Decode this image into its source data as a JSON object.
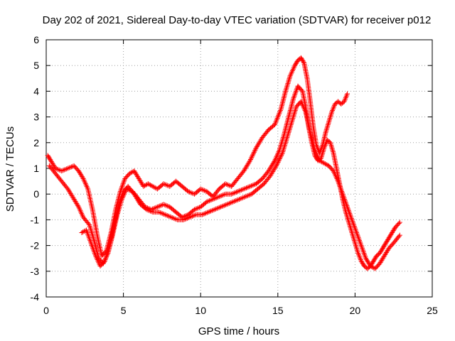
{
  "chart_data": {
    "type": "scatter",
    "title": "Day 202 of 2021, Sidereal Day-to-day VTEC variation (SDTVAR) for receiver p012",
    "xlabel": "GPS time / hours",
    "ylabel": "SDTVAR / TECUs",
    "xlim": [
      0,
      25
    ],
    "ylim": [
      -4,
      6
    ],
    "xticks": [
      0,
      5,
      10,
      15,
      20,
      25
    ],
    "yticks": [
      -4,
      -3,
      -2,
      -1,
      0,
      1,
      2,
      3,
      4,
      5,
      6
    ],
    "grid": true,
    "marker": "+",
    "color": "#ff0000",
    "series": [
      {
        "name": "upper track",
        "x": [
          0.1,
          0.3,
          0.6,
          1.0,
          1.4,
          1.8,
          2.1,
          2.4,
          2.7,
          3.0,
          3.3,
          3.6,
          3.9,
          4.2,
          4.5,
          4.8,
          5.1,
          5.4,
          5.7,
          6.0,
          6.3,
          6.6,
          6.9,
          7.2,
          7.6,
          8.0,
          8.4,
          8.8,
          9.2,
          9.6,
          10.0,
          10.4,
          10.8,
          11.2,
          11.6,
          12.0,
          12.4,
          12.8,
          13.2,
          13.6,
          14.0,
          14.4,
          14.8,
          15.2,
          15.5,
          15.8,
          16.1,
          16.3,
          16.5,
          16.7,
          16.9,
          17.1,
          17.3,
          17.5,
          17.7,
          17.9,
          18.1,
          18.3,
          18.5,
          18.7,
          18.9,
          19.1,
          19.3,
          19.5
        ],
        "y": [
          1.5,
          1.3,
          1.0,
          0.9,
          1.0,
          1.1,
          0.9,
          0.6,
          0.2,
          -0.6,
          -1.6,
          -2.4,
          -2.2,
          -1.5,
          -0.6,
          0.1,
          0.6,
          0.8,
          0.9,
          0.6,
          0.3,
          0.4,
          0.3,
          0.2,
          0.4,
          0.3,
          0.5,
          0.3,
          0.1,
          0.0,
          0.2,
          0.1,
          -0.1,
          0.2,
          0.4,
          0.3,
          0.6,
          0.9,
          1.3,
          1.8,
          2.2,
          2.5,
          2.7,
          3.3,
          4.0,
          4.6,
          5.0,
          5.2,
          5.3,
          5.1,
          4.5,
          3.6,
          2.6,
          1.9,
          1.6,
          1.9,
          2.4,
          2.8,
          3.2,
          3.5,
          3.6,
          3.5,
          3.6,
          3.9
        ]
      },
      {
        "name": "middle track",
        "x": [
          0.2,
          0.6,
          1.0,
          1.4,
          1.8,
          2.1,
          2.4,
          2.8,
          3.1,
          3.4,
          3.7,
          4.0,
          4.3,
          4.6,
          4.9,
          5.2,
          5.6,
          6.0,
          6.4,
          6.8,
          7.2,
          7.6,
          8.0,
          8.4,
          8.8,
          9.2,
          9.6,
          10.0,
          10.4,
          10.8,
          11.2,
          11.6,
          12.0,
          12.4,
          12.8,
          13.2,
          13.6,
          14.0,
          14.4,
          14.8,
          15.1,
          15.4,
          15.7,
          16.0,
          16.3,
          16.6,
          16.8,
          17.0,
          17.2,
          17.4,
          17.6,
          17.8,
          18.0,
          18.2,
          18.4,
          18.6,
          18.8,
          19.0,
          19.2,
          19.4,
          19.6,
          19.8,
          20.0,
          20.2,
          20.4,
          20.6,
          20.8,
          21.0,
          21.2,
          21.4,
          21.6,
          21.8,
          22.0,
          22.2,
          22.4,
          22.6,
          22.9
        ],
        "y": [
          1.1,
          0.8,
          0.5,
          0.2,
          -0.2,
          -0.5,
          -0.9,
          -1.2,
          -1.8,
          -2.5,
          -2.7,
          -2.3,
          -1.6,
          -0.8,
          -0.2,
          0.2,
          0.1,
          -0.2,
          -0.5,
          -0.6,
          -0.5,
          -0.4,
          -0.5,
          -0.7,
          -0.9,
          -0.8,
          -0.6,
          -0.5,
          -0.3,
          -0.2,
          -0.1,
          0.0,
          0.0,
          0.1,
          0.2,
          0.3,
          0.4,
          0.6,
          0.9,
          1.3,
          1.7,
          2.3,
          3.0,
          3.7,
          4.2,
          4.0,
          3.4,
          2.6,
          2.0,
          1.5,
          1.3,
          1.4,
          1.8,
          2.1,
          2.0,
          1.6,
          1.0,
          0.4,
          -0.2,
          -0.7,
          -1.1,
          -1.5,
          -1.9,
          -2.3,
          -2.6,
          -2.8,
          -2.9,
          -2.8,
          -2.6,
          -2.4,
          -2.3,
          -2.1,
          -1.9,
          -1.7,
          -1.5,
          -1.3,
          -1.1
        ]
      },
      {
        "name": "lower track",
        "x": [
          2.3,
          2.6,
          2.9,
          3.2,
          3.5,
          3.8,
          4.1,
          4.4,
          4.7,
          5.0,
          5.3,
          5.7,
          6.1,
          6.5,
          6.9,
          7.3,
          7.7,
          8.1,
          8.5,
          8.9,
          9.3,
          9.7,
          10.1,
          10.5,
          10.9,
          11.3,
          11.7,
          12.1,
          12.5,
          12.9,
          13.3,
          13.7,
          14.1,
          14.5,
          14.9,
          15.3,
          15.6,
          15.9,
          16.2,
          16.5,
          16.8,
          17.1,
          17.4,
          17.7,
          18.0,
          18.3,
          18.6,
          18.9,
          19.2,
          19.5,
          19.8,
          20.1,
          20.4,
          20.7,
          21.0,
          21.3,
          21.6,
          21.9,
          22.2,
          22.5,
          22.9
        ],
        "y": [
          -1.5,
          -1.4,
          -1.9,
          -2.4,
          -2.8,
          -2.6,
          -2.0,
          -1.2,
          -0.4,
          0.1,
          0.3,
          0.0,
          -0.4,
          -0.6,
          -0.7,
          -0.7,
          -0.8,
          -0.9,
          -1.0,
          -1.0,
          -0.9,
          -0.8,
          -0.8,
          -0.7,
          -0.6,
          -0.5,
          -0.4,
          -0.3,
          -0.2,
          -0.1,
          0.0,
          0.2,
          0.4,
          0.7,
          1.1,
          1.6,
          2.2,
          2.8,
          3.4,
          3.6,
          3.2,
          2.4,
          1.7,
          1.3,
          1.2,
          1.1,
          0.9,
          0.5,
          0.0,
          -0.5,
          -1.0,
          -1.5,
          -2.0,
          -2.5,
          -2.8,
          -2.9,
          -2.7,
          -2.4,
          -2.1,
          -1.9,
          -1.6
        ]
      }
    ]
  }
}
